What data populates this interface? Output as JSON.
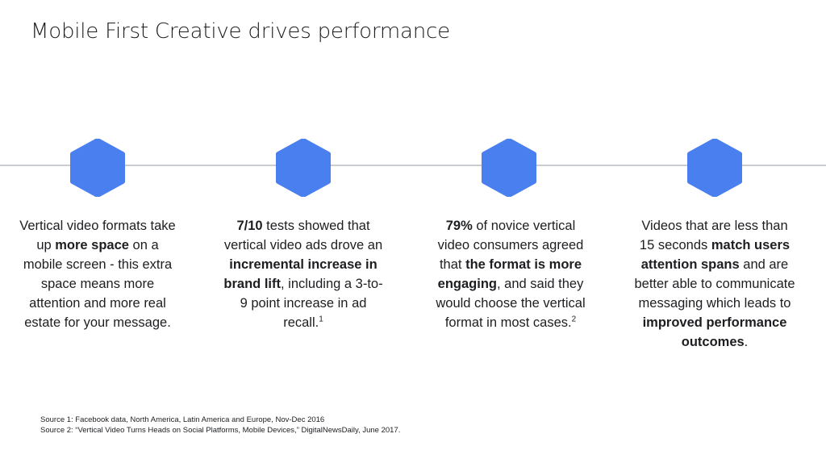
{
  "title": "Mobile First Creative drives performance",
  "accent_color": "#4a7ff0",
  "hex_icon": "hexagon-icon",
  "columns": [
    {
      "segments": [
        {
          "t": "Vertical video formats take up "
        },
        {
          "t": "more space",
          "b": true
        },
        {
          "t": " on a mobile screen - this extra space means more attention and more real estate for your message."
        }
      ]
    },
    {
      "segments": [
        {
          "t": "7/10",
          "b": true
        },
        {
          "t": " tests showed that vertical video ads drove an "
        },
        {
          "t": "incremental increase in brand lift",
          "b": true
        },
        {
          "t": ", including a 3-to-9 point increase in ad recall."
        },
        {
          "t": "1",
          "sup": true
        }
      ]
    },
    {
      "segments": [
        {
          "t": "79%",
          "b": true
        },
        {
          "t": " of novice vertical video consumers agreed that "
        },
        {
          "t": "the format is more engaging",
          "b": true
        },
        {
          "t": ", and said they would choose the vertical format in most cases."
        },
        {
          "t": "2",
          "sup": true
        }
      ]
    },
    {
      "segments": [
        {
          "t": "Videos that are less than 15 seconds "
        },
        {
          "t": "match users attention spans",
          "b": true
        },
        {
          "t": " and are better able to communicate messaging which leads to "
        },
        {
          "t": "improved performance outcomes",
          "b": true
        },
        {
          "t": "."
        }
      ]
    }
  ],
  "sources": [
    "Source 1: Facebook data, North America, Latin America and Europe, Nov-Dec 2016",
    "Source 2: “Vertical Video Turns Heads on Social Platforms, Mobile Devices,” DigitalNewsDaily, June 2017."
  ]
}
